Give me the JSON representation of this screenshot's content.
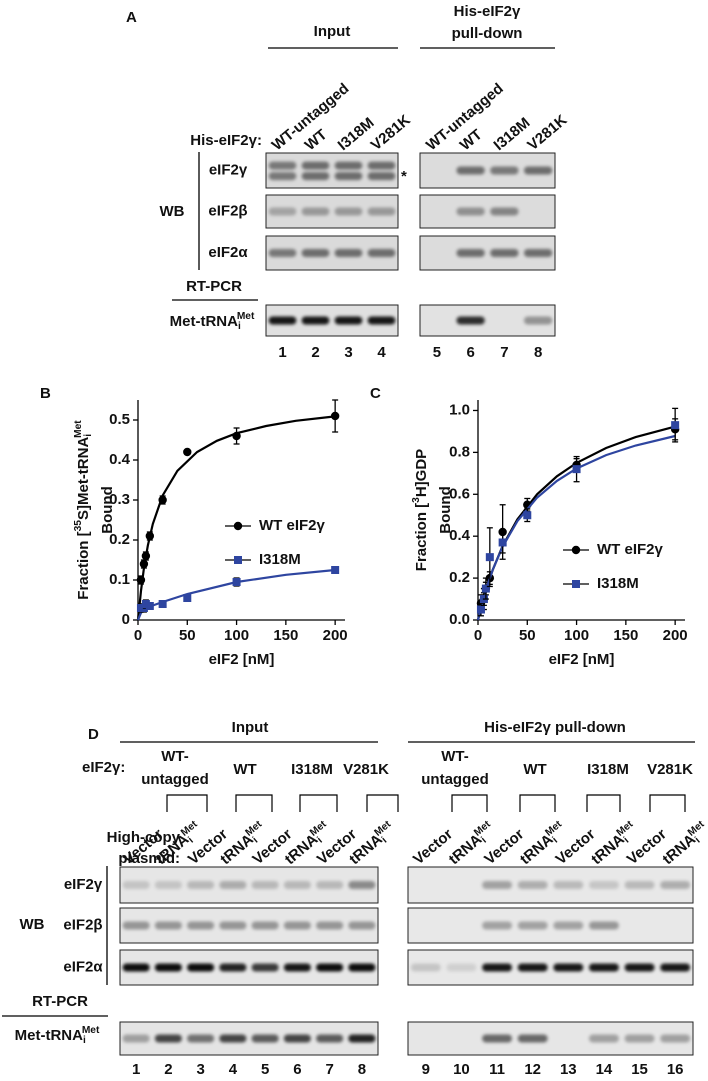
{
  "panel_a": {
    "label": "A",
    "input_header": "Input",
    "pulldown_header": [
      "His-eIF2γ",
      "pull-down"
    ],
    "row_label": "His-eIF2γ:",
    "lanes": [
      "WT-untagged",
      "WT",
      "I318M",
      "V281K"
    ],
    "wb_label": "WB",
    "wb_rows": [
      "eIF2γ",
      "eIF2β",
      "eIF2α"
    ],
    "asterisk": "*",
    "rtpcr_label": "RT-PCR",
    "rtpcr_row": [
      "Met-tRNA",
      {
        "sub": "i"
      },
      {
        "sup": "Met"
      }
    ],
    "lane_numbers": [
      1,
      2,
      3,
      4,
      5,
      6,
      7,
      8
    ]
  },
  "chart_data": [
    {
      "type": "scatter",
      "panel_label": "B",
      "ylabel": [
        "Fraction [",
        {
          "sup": "35"
        },
        "S]Met-tRNA",
        {
          "sub": "i"
        },
        {
          "sup": "Met"
        }
      ],
      "ylabel_line2": "Bound",
      "xlabel": "eIF2 [nM]",
      "xlim": [
        0,
        210
      ],
      "ylim": [
        0,
        0.55
      ],
      "xticks": [
        0,
        50,
        100,
        150,
        200
      ],
      "yticks": [
        0,
        0.1,
        0.2,
        0.3,
        0.4,
        0.5
      ],
      "legend": "right",
      "series": [
        {
          "name": "WT eIF2γ",
          "color": "#000000",
          "marker": "circle",
          "x": [
            3,
            6,
            8,
            12,
            25,
            50,
            100,
            200
          ],
          "values": [
            0.1,
            0.14,
            0.16,
            0.21,
            0.3,
            0.42,
            0.46,
            0.51
          ],
          "errors": [
            0.01,
            0.01,
            0.01,
            0.01,
            0.01,
            0.005,
            0.02,
            0.04
          ],
          "fit": {
            "x": [
              0,
              3,
              6,
              10,
              15,
              25,
              40,
              60,
              80,
              100,
              130,
              160,
              200
            ],
            "values": [
              0,
              0.073,
              0.129,
              0.187,
              0.24,
              0.311,
              0.373,
              0.42,
              0.448,
              0.467,
              0.485,
              0.498,
              0.509
            ]
          }
        },
        {
          "name": "I318M",
          "color": "#2e45a0",
          "marker": "square",
          "x": [
            3,
            6,
            8,
            12,
            25,
            50,
            100,
            200
          ],
          "values": [
            0.03,
            0.03,
            0.04,
            0.035,
            0.04,
            0.055,
            0.095,
            0.125
          ],
          "errors": [
            0.01,
            0.01,
            0.01,
            0.005,
            0.005,
            0.005,
            0.01,
            0.005
          ],
          "fit": {
            "x": [
              0,
              3,
              6,
              10,
              25,
              50,
              100,
              150,
              200
            ],
            "values": [
              0,
              0.018,
              0.025,
              0.032,
              0.045,
              0.065,
              0.095,
              0.113,
              0.125
            ]
          }
        }
      ]
    },
    {
      "type": "scatter",
      "panel_label": "C",
      "ylabel": [
        "Fraction [",
        {
          "sup": "3"
        },
        "H]GDP"
      ],
      "ylabel_line2": "Bound",
      "xlabel": "eIF2 [nM]",
      "xlim": [
        0,
        210
      ],
      "ylim": [
        0,
        1.05
      ],
      "xticks": [
        0,
        50,
        100,
        150,
        200
      ],
      "yticks": [
        {
          "value": 0,
          "label": "0.0"
        },
        0.2,
        0.4,
        0.6,
        0.8,
        {
          "value": 1,
          "label": "1.0"
        }
      ],
      "legend": "lower right",
      "series": [
        {
          "name": "WT eIF2γ",
          "color": "#000000",
          "marker": "circle",
          "x": [
            3,
            6,
            8,
            12,
            25,
            50,
            100,
            200
          ],
          "values": [
            0.08,
            0.1,
            0.15,
            0.2,
            0.42,
            0.55,
            0.74,
            0.91
          ],
          "errors": [
            0.04,
            0.05,
            0.03,
            0.03,
            0.13,
            0.03,
            0.03,
            0.05
          ],
          "fit": {
            "x": [
              0,
              3,
              6,
              10,
              15,
              25,
              40,
              60,
              80,
              100,
              130,
              160,
              200
            ],
            "values": [
              0,
              0.057,
              0.109,
              0.171,
              0.24,
              0.353,
              0.48,
              0.6,
              0.686,
              0.75,
              0.821,
              0.873,
              0.923
            ]
          }
        },
        {
          "name": "I318M",
          "color": "#2e45a0",
          "marker": "square",
          "x": [
            3,
            6,
            8,
            12,
            25,
            50,
            100,
            200
          ],
          "values": [
            0.05,
            0.1,
            0.15,
            0.3,
            0.37,
            0.5,
            0.72,
            0.93
          ],
          "errors": [
            0.03,
            0.03,
            0.05,
            0.14,
            0.05,
            0.03,
            0.06,
            0.08
          ],
          "fit": {
            "x": [
              0,
              3,
              6,
              10,
              15,
              25,
              40,
              60,
              80,
              100,
              130,
              160,
              200
            ],
            "values": [
              0,
              0.058,
              0.11,
              0.172,
              0.24,
              0.35,
              0.472,
              0.584,
              0.664,
              0.723,
              0.787,
              0.833,
              0.878
            ]
          }
        }
      ]
    }
  ],
  "panel_d": {
    "label": "D",
    "input_header": "Input",
    "pulldown_header": "His-eIF2γ pull-down",
    "row_label": "eIF2γ:",
    "groups": [
      [
        "WT-",
        "untagged"
      ],
      [
        "WT"
      ],
      [
        "I318M"
      ],
      [
        "V281K"
      ]
    ],
    "plasmid_label": [
      "High-copy",
      "plasmid:"
    ],
    "plasmids": [
      [
        "Vector"
      ],
      [
        "tRNA",
        {
          "sub": "i"
        },
        {
          "sup": "Met"
        }
      ]
    ],
    "wb_label": "WB",
    "wb_rows": [
      "eIF2γ",
      "eIF2β",
      "eIF2α"
    ],
    "rtpcr_label": "RT-PCR",
    "rtpcr_row": [
      "Met-tRNA",
      {
        "sub": "i"
      },
      {
        "sup": "Met"
      }
    ],
    "lane_numbers": [
      1,
      2,
      3,
      4,
      5,
      6,
      7,
      8,
      9,
      10,
      11,
      12,
      13,
      14,
      15,
      16
    ]
  }
}
